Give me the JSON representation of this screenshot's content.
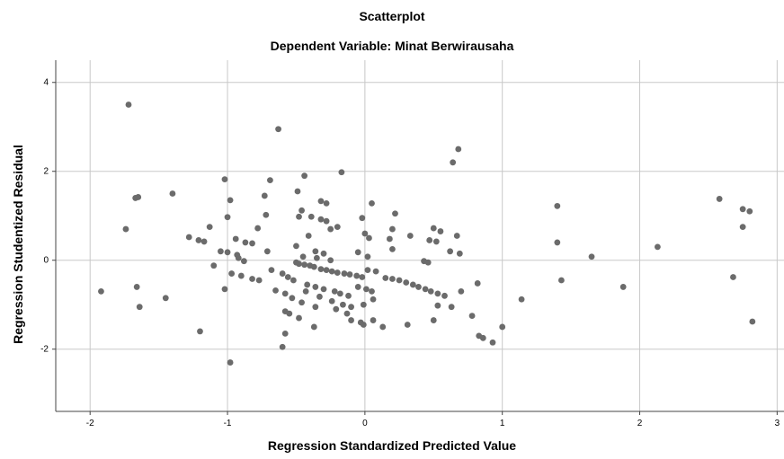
{
  "chart_data": {
    "type": "scatter",
    "title": "Scatterplot",
    "subtitle": "Dependent Variable: Minat Berwirausaha",
    "xlabel": "Regression Standardized Predicted Value",
    "ylabel": "Regression Studentized Residual",
    "xlim": [
      -2.25,
      3.05
    ],
    "ylim": [
      -3.4,
      4.5
    ],
    "xticks": [
      "-2",
      "-1",
      "0",
      "1",
      "2",
      "3"
    ],
    "yticks": [
      "-2",
      "0",
      "2",
      "4"
    ],
    "xtick_values": [
      -2,
      -1,
      0,
      1,
      2,
      3
    ],
    "ytick_values": [
      -2,
      0,
      2,
      4
    ],
    "grid": true,
    "point_color": "#6b6b6b",
    "points": [
      [
        -1.72,
        3.5
      ],
      [
        -0.63,
        2.95
      ],
      [
        0.68,
        2.5
      ],
      [
        0.64,
        2.2
      ],
      [
        -0.17,
        1.98
      ],
      [
        -0.44,
        1.9
      ],
      [
        -1.02,
        1.82
      ],
      [
        -0.69,
        1.8
      ],
      [
        -0.49,
        1.55
      ],
      [
        -1.4,
        1.5
      ],
      [
        -0.73,
        1.45
      ],
      [
        -1.65,
        1.42
      ],
      [
        -1.67,
        1.4
      ],
      [
        -0.32,
        1.33
      ],
      [
        -0.98,
        1.35
      ],
      [
        -0.28,
        1.28
      ],
      [
        0.05,
        1.28
      ],
      [
        1.4,
        1.22
      ],
      [
        2.58,
        1.38
      ],
      [
        2.75,
        1.15
      ],
      [
        2.8,
        1.1
      ],
      [
        -0.46,
        1.12
      ],
      [
        -0.02,
        0.95
      ],
      [
        -1.0,
        0.97
      ],
      [
        -0.72,
        1.02
      ],
      [
        -0.48,
        0.98
      ],
      [
        -0.39,
        0.98
      ],
      [
        0.22,
        1.05
      ],
      [
        -0.32,
        0.92
      ],
      [
        -0.28,
        0.88
      ],
      [
        -0.41,
        0.55
      ],
      [
        -0.25,
        0.7
      ],
      [
        -0.2,
        0.75
      ],
      [
        0.0,
        0.6
      ],
      [
        0.2,
        0.7
      ],
      [
        0.5,
        0.72
      ],
      [
        -1.13,
        0.75
      ],
      [
        -0.78,
        0.72
      ],
      [
        -1.74,
        0.7
      ],
      [
        0.33,
        0.55
      ],
      [
        0.55,
        0.65
      ],
      [
        2.75,
        0.75
      ],
      [
        -1.28,
        0.52
      ],
      [
        -1.21,
        0.45
      ],
      [
        -1.17,
        0.42
      ],
      [
        -0.94,
        0.48
      ],
      [
        -0.87,
        0.4
      ],
      [
        -0.82,
        0.38
      ],
      [
        -0.5,
        0.32
      ],
      [
        0.03,
        0.5
      ],
      [
        0.18,
        0.48
      ],
      [
        0.47,
        0.45
      ],
      [
        0.52,
        0.42
      ],
      [
        0.67,
        0.55
      ],
      [
        1.4,
        0.4
      ],
      [
        2.13,
        0.3
      ],
      [
        -1.0,
        0.18
      ],
      [
        -0.93,
        0.12
      ],
      [
        -0.71,
        0.2
      ],
      [
        -0.36,
        0.2
      ],
      [
        -0.3,
        0.15
      ],
      [
        -0.05,
        0.18
      ],
      [
        0.2,
        0.25
      ],
      [
        0.62,
        0.2
      ],
      [
        0.69,
        0.15
      ],
      [
        1.65,
        0.08
      ],
      [
        -1.05,
        0.2
      ],
      [
        -0.92,
        0.05
      ],
      [
        -0.88,
        -0.02
      ],
      [
        -0.45,
        0.08
      ],
      [
        -0.35,
        0.05
      ],
      [
        -0.25,
        0.0
      ],
      [
        0.02,
        0.08
      ],
      [
        0.43,
        -0.02
      ],
      [
        0.46,
        -0.05
      ],
      [
        -1.1,
        -0.12
      ],
      [
        -0.68,
        -0.22
      ],
      [
        -0.5,
        -0.05
      ],
      [
        -0.48,
        -0.08
      ],
      [
        -0.44,
        -0.1
      ],
      [
        -0.4,
        -0.12
      ],
      [
        -0.37,
        -0.15
      ],
      [
        -0.32,
        -0.2
      ],
      [
        -0.28,
        -0.22
      ],
      [
        -0.24,
        -0.25
      ],
      [
        -0.2,
        -0.28
      ],
      [
        -0.15,
        -0.3
      ],
      [
        -0.11,
        -0.32
      ],
      [
        -0.06,
        -0.35
      ],
      [
        -0.02,
        -0.38
      ],
      [
        0.02,
        -0.22
      ],
      [
        0.08,
        -0.25
      ],
      [
        0.15,
        -0.4
      ],
      [
        0.2,
        -0.42
      ],
      [
        0.25,
        -0.45
      ],
      [
        0.3,
        -0.5
      ],
      [
        0.35,
        -0.55
      ],
      [
        0.39,
        -0.6
      ],
      [
        0.44,
        -0.65
      ],
      [
        0.48,
        -0.7
      ],
      [
        0.53,
        -0.75
      ],
      [
        0.58,
        -0.8
      ],
      [
        -0.6,
        -0.3
      ],
      [
        -0.56,
        -0.38
      ],
      [
        -0.52,
        -0.45
      ],
      [
        -0.42,
        -0.55
      ],
      [
        -0.36,
        -0.6
      ],
      [
        -0.3,
        -0.65
      ],
      [
        -0.22,
        -0.7
      ],
      [
        -0.18,
        -0.75
      ],
      [
        -0.12,
        -0.8
      ],
      [
        -0.05,
        -0.6
      ],
      [
        0.01,
        -0.65
      ],
      [
        0.05,
        -0.7
      ],
      [
        -1.92,
        -0.7
      ],
      [
        -1.66,
        -0.6
      ],
      [
        -1.45,
        -0.85
      ],
      [
        -1.02,
        -0.65
      ],
      [
        -0.97,
        -0.3
      ],
      [
        -0.9,
        -0.35
      ],
      [
        -0.82,
        -0.42
      ],
      [
        -0.77,
        -0.45
      ],
      [
        -0.65,
        -0.68
      ],
      [
        -0.58,
        -0.75
      ],
      [
        -0.53,
        -0.85
      ],
      [
        -0.46,
        -0.95
      ],
      [
        -0.43,
        -0.7
      ],
      [
        -0.33,
        -0.82
      ],
      [
        -0.24,
        -0.92
      ],
      [
        -0.16,
        -1.0
      ],
      [
        -0.1,
        -1.05
      ],
      [
        0.06,
        -0.88
      ],
      [
        -0.01,
        -1.0
      ],
      [
        0.7,
        -0.7
      ],
      [
        0.82,
        -0.52
      ],
      [
        1.14,
        -0.88
      ],
      [
        1.43,
        -0.45
      ],
      [
        1.88,
        -0.6
      ],
      [
        2.68,
        -0.38
      ],
      [
        -1.64,
        -1.05
      ],
      [
        -0.58,
        -1.15
      ],
      [
        -0.55,
        -1.2
      ],
      [
        -0.48,
        -1.3
      ],
      [
        -0.36,
        -1.05
      ],
      [
        -0.21,
        -1.1
      ],
      [
        -0.13,
        -1.2
      ],
      [
        -0.1,
        -1.35
      ],
      [
        -0.03,
        -1.4
      ],
      [
        0.06,
        -1.35
      ],
      [
        0.13,
        -1.5
      ],
      [
        0.31,
        -1.45
      ],
      [
        0.5,
        -1.35
      ],
      [
        0.63,
        -1.05
      ],
      [
        0.78,
        -1.25
      ],
      [
        0.53,
        -1.02
      ],
      [
        -1.2,
        -1.6
      ],
      [
        -0.58,
        -1.65
      ],
      [
        -0.37,
        -1.5
      ],
      [
        -0.01,
        -1.45
      ],
      [
        0.83,
        -1.7
      ],
      [
        0.86,
        -1.75
      ],
      [
        0.93,
        -1.85
      ],
      [
        1.0,
        -1.5
      ],
      [
        2.82,
        -1.38
      ],
      [
        -0.6,
        -1.95
      ],
      [
        -0.98,
        -2.3
      ]
    ]
  }
}
